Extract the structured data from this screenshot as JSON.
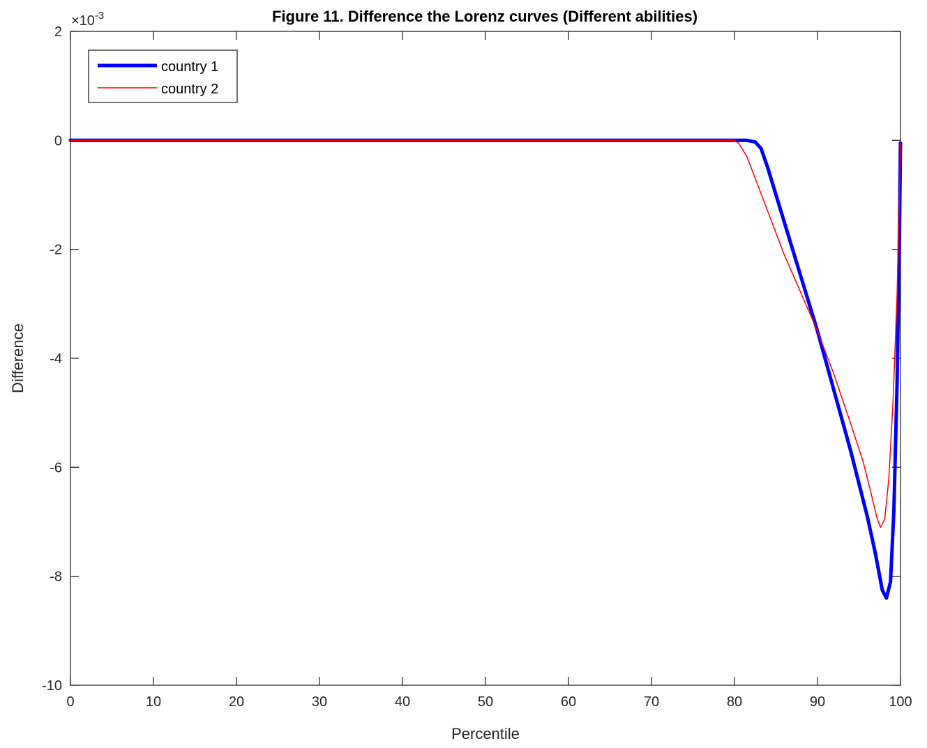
{
  "chart_data": {
    "type": "line",
    "title": "Figure 11. Difference the Lorenz curves (Different abilities)",
    "xlabel": "Percentile",
    "ylabel": "Difference",
    "xlim": [
      0,
      100
    ],
    "ylim": [
      -10,
      2
    ],
    "y_scale_factor": "×10",
    "y_scale_exponent": "-3",
    "xticks": [
      "0",
      "10",
      "20",
      "30",
      "40",
      "50",
      "60",
      "70",
      "80",
      "90",
      "100"
    ],
    "yticks": [
      "2",
      "0",
      "-2",
      "-4",
      "-6",
      "-8",
      "-10"
    ],
    "legend_position": "top-left",
    "grid": false,
    "series": [
      {
        "name": "country 1",
        "color": "#0000FF",
        "x": [
          0,
          10,
          20,
          30,
          40,
          50,
          60,
          70,
          80,
          81.5,
          82.5,
          83.2,
          84,
          85,
          86,
          88,
          90,
          92,
          94,
          96,
          97,
          97.8,
          98.3,
          98.8,
          99.2,
          99.6,
          99.85,
          100
        ],
        "y": [
          0,
          0,
          0,
          0,
          0,
          0,
          0,
          0,
          0,
          0,
          -0.03,
          -0.15,
          -0.5,
          -1.0,
          -1.5,
          -2.5,
          -3.5,
          -4.6,
          -5.7,
          -6.9,
          -7.6,
          -8.25,
          -8.4,
          -8.1,
          -6.8,
          -4.4,
          -2.0,
          -0.05
        ]
      },
      {
        "name": "country 2",
        "color": "#FF0000",
        "x": [
          0,
          10,
          20,
          30,
          40,
          50,
          60,
          70,
          80,
          80.5,
          81.5,
          82.5,
          84,
          86,
          88,
          90,
          92,
          94,
          95.5,
          96.5,
          97.2,
          97.6,
          98.1,
          98.6,
          99.1,
          99.6,
          99.85,
          100
        ],
        "y": [
          0,
          0,
          0,
          0,
          0,
          0,
          0,
          0,
          0,
          -0.05,
          -0.3,
          -0.7,
          -1.3,
          -2.1,
          -2.8,
          -3.5,
          -4.3,
          -5.2,
          -5.9,
          -6.5,
          -6.95,
          -7.1,
          -6.95,
          -6.2,
          -4.8,
          -2.8,
          -1.2,
          -0.05
        ]
      }
    ]
  }
}
